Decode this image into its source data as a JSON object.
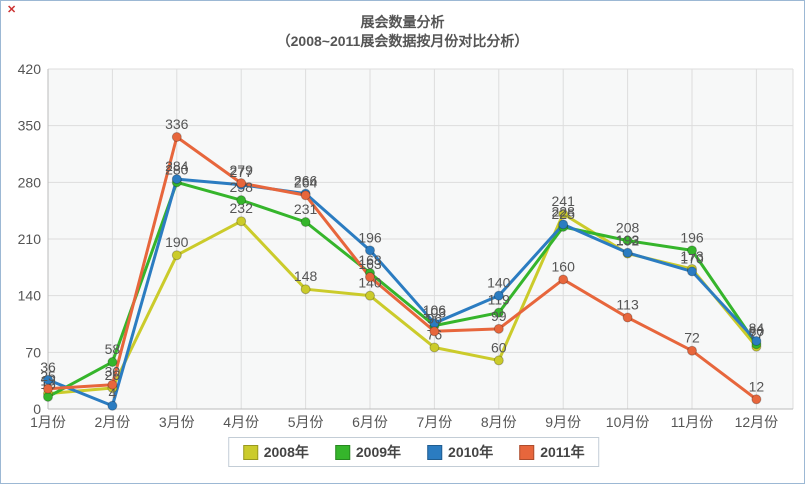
{
  "page": {
    "broken_image_mark": "✕"
  },
  "chart_data": {
    "type": "line",
    "title": "展会数量分析",
    "subtitle": "（2008~2011展会数据按月份对比分析）",
    "categories": [
      "1月份",
      "2月份",
      "3月份",
      "4月份",
      "5月份",
      "6月份",
      "7月份",
      "8月份",
      "9月份",
      "10月份",
      "11月份",
      "12月份"
    ],
    "series": [
      {
        "name": "2008年",
        "color": "#cbcb2b",
        "values": [
          19,
          26,
          190,
          232,
          148,
          140,
          76,
          60,
          241,
          192,
          173,
          77
        ]
      },
      {
        "name": "2009年",
        "color": "#35b52b",
        "values": [
          15,
          58,
          280,
          258,
          231,
          168,
          103,
          119,
          225,
          208,
          196,
          80
        ]
      },
      {
        "name": "2010年",
        "color": "#2b7cc1",
        "values": [
          36,
          4,
          284,
          277,
          266,
          196,
          106,
          140,
          228,
          193,
          170,
          84
        ]
      },
      {
        "name": "2011年",
        "color": "#e7663c",
        "values": [
          25,
          30,
          336,
          279,
          264,
          163,
          96,
          99,
          160,
          113,
          72,
          12
        ]
      }
    ],
    "ylim": [
      0,
      420
    ],
    "yticks": [
      0,
      70,
      140,
      210,
      280,
      350,
      420
    ],
    "grid": true,
    "legend_position": "bottom",
    "axis_text_color": "#555555",
    "label_text_color": "#555555",
    "grid_color": "#dddddd",
    "axis_line_color": "#bbbbbb"
  }
}
